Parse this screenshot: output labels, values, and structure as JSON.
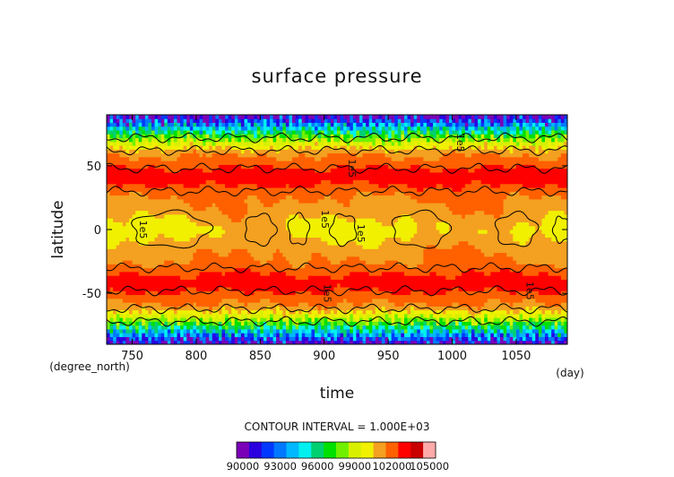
{
  "chart_data": {
    "type": "heatmap",
    "title": "surface pressure",
    "xlabel": "time",
    "ylabel": "latitude",
    "x_units": "(day)",
    "y_units": "(degree_north)",
    "xlim": [
      730,
      1090
    ],
    "ylim": [
      -90,
      90
    ],
    "x_ticks": [
      750,
      800,
      850,
      900,
      950,
      1000,
      1050
    ],
    "y_ticks": [
      50,
      0,
      -50
    ],
    "contour_interval_text": "CONTOUR INTERVAL = 1.000E+03",
    "contour_labels": [
      "1e5",
      "1e5",
      "1e5",
      "1e5",
      "1e5",
      "1e5",
      "1e5"
    ],
    "colorbar": {
      "min": 90000,
      "max": 105000,
      "step": 1000,
      "tick_labels": [
        "90000",
        "93000",
        "96000",
        "99000",
        "102000",
        "105000"
      ],
      "colors": [
        "#7a00b8",
        "#2a00e0",
        "#0038ff",
        "#0078ff",
        "#00b8ff",
        "#00f0f0",
        "#00d070",
        "#00e000",
        "#70f000",
        "#d8f000",
        "#f0f000",
        "#f4a020",
        "#ff6000",
        "#ff0000",
        "#c80000",
        "#ffaaaa"
      ]
    },
    "grid": false,
    "legend": "colorbar-bottom"
  }
}
